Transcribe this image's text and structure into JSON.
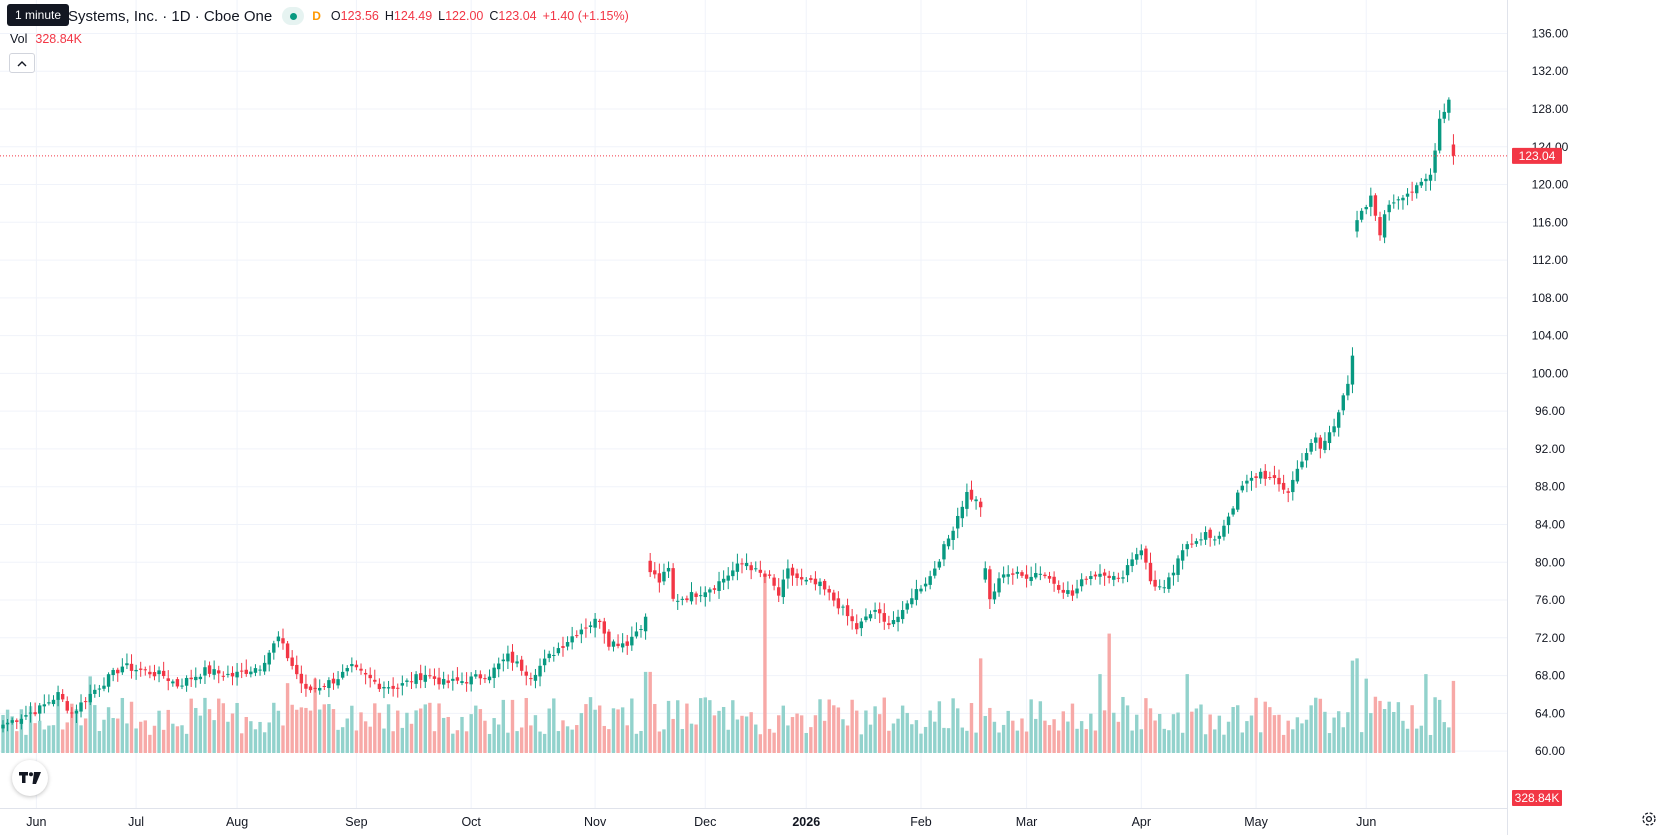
{
  "header": {
    "symbol_title": "Systems, Inc. · 1D · Cboe One",
    "interval_badge": "D",
    "tooltip": "1 minute",
    "ohlc": [
      {
        "key": "O",
        "value": "123.56"
      },
      {
        "key": "H",
        "value": "124.49"
      },
      {
        "key": "L",
        "value": "122.00"
      },
      {
        "key": "C",
        "value": "123.04"
      },
      {
        "key": "",
        "value": "+1.40 (+1.15%)"
      }
    ],
    "vol_label": "Vol",
    "vol_value": "328.84K"
  },
  "price_label": "123.04",
  "volume_label": "328.84K",
  "colors": {
    "up": "#089981",
    "down": "#f23645",
    "vol_up": "#92d2cc",
    "vol_down": "#f7a9a7",
    "grid": "#f0f3fa",
    "axis_text": "#131722"
  },
  "icons": [
    "chevron-up-icon",
    "tradingview-logo-icon",
    "settings-icon",
    "status-dot-icon"
  ],
  "chart_data": {
    "type": "candlestick",
    "ylim": [
      58,
      137
    ],
    "y_ticks": [
      "136.00",
      "132.00",
      "128.00",
      "124.00",
      "120.00",
      "116.00",
      "112.00",
      "108.00",
      "104.00",
      "100.00",
      "96.00",
      "92.00",
      "88.00",
      "84.00",
      "80.00",
      "76.00",
      "72.00",
      "68.00",
      "64.00",
      "60.00"
    ],
    "x_ticks": [
      {
        "label": "Jun",
        "bold": false,
        "index": 4
      },
      {
        "label": "Jul",
        "bold": false,
        "index": 29
      },
      {
        "label": "Aug",
        "bold": false,
        "index": 51
      },
      {
        "label": "Sep",
        "bold": false,
        "index": 77
      },
      {
        "label": "Oct",
        "bold": false,
        "index": 102
      },
      {
        "label": "Nov",
        "bold": false,
        "index": 129
      },
      {
        "label": "Dec",
        "bold": false,
        "index": 153
      },
      {
        "label": "2026",
        "bold": true,
        "index": 175
      },
      {
        "label": "Feb",
        "bold": false,
        "index": 200
      },
      {
        "label": "Mar",
        "bold": false,
        "index": 223
      },
      {
        "label": "Apr",
        "bold": false,
        "index": 248
      },
      {
        "label": "May",
        "bold": false,
        "index": 273
      },
      {
        "label": "Jun",
        "bold": false,
        "index": 297
      }
    ],
    "last_price": 123.04,
    "anchors": [
      [
        0,
        62.8
      ],
      [
        8,
        64.5
      ],
      [
        12,
        66
      ],
      [
        15,
        64
      ],
      [
        20,
        66.5
      ],
      [
        26,
        69
      ],
      [
        35,
        68
      ],
      [
        38,
        67
      ],
      [
        44,
        68.5
      ],
      [
        50,
        68
      ],
      [
        56,
        69
      ],
      [
        60,
        72
      ],
      [
        62,
        70
      ],
      [
        66,
        66.3
      ],
      [
        72,
        67.5
      ],
      [
        76,
        68.8
      ],
      [
        82,
        67
      ],
      [
        86,
        66.8
      ],
      [
        92,
        68.2
      ],
      [
        96,
        67.2
      ],
      [
        101,
        67.5
      ],
      [
        106,
        68.2
      ],
      [
        110,
        70
      ],
      [
        115,
        68
      ],
      [
        120,
        70.5
      ],
      [
        126,
        73
      ],
      [
        130,
        74
      ],
      [
        132,
        71.5
      ],
      [
        136,
        71.5
      ],
      [
        140,
        74
      ],
      [
        141,
        79
      ],
      [
        143,
        78
      ],
      [
        145,
        79.2
      ],
      [
        146,
        76
      ],
      [
        150,
        76.5
      ],
      [
        155,
        77.5
      ],
      [
        160,
        79.5
      ],
      [
        162,
        80
      ],
      [
        164,
        79
      ],
      [
        167,
        78.2
      ],
      [
        169,
        76.5
      ],
      [
        171,
        79
      ],
      [
        174,
        78
      ],
      [
        178,
        77.5
      ],
      [
        182,
        75.5
      ],
      [
        186,
        73
      ],
      [
        190,
        75
      ],
      [
        192,
        73.5
      ],
      [
        196,
        74.5
      ],
      [
        198,
        76.5
      ],
      [
        202,
        78.5
      ],
      [
        204,
        80.5
      ],
      [
        206,
        82.5
      ],
      [
        208,
        85
      ],
      [
        210,
        87.3
      ],
      [
        213,
        86
      ],
      [
        214,
        79
      ],
      [
        215,
        76
      ],
      [
        218,
        79
      ],
      [
        222,
        78.5
      ],
      [
        226,
        79
      ],
      [
        230,
        77.5
      ],
      [
        233,
        76.5
      ],
      [
        236,
        78.5
      ],
      [
        240,
        79
      ],
      [
        243,
        78
      ],
      [
        246,
        80.5
      ],
      [
        248,
        81.5
      ],
      [
        250,
        78
      ],
      [
        253,
        77
      ],
      [
        256,
        80
      ],
      [
        258,
        82
      ],
      [
        262,
        83
      ],
      [
        264,
        82
      ],
      [
        267,
        85
      ],
      [
        270,
        88
      ],
      [
        274,
        89.5
      ],
      [
        277,
        88.5
      ],
      [
        280,
        87.5
      ],
      [
        283,
        91
      ],
      [
        286,
        93
      ],
      [
        287,
        92
      ],
      [
        290,
        94.5
      ],
      [
        292,
        98
      ],
      [
        293,
        99
      ],
      [
        294,
        101.5
      ],
      [
        295,
        116
      ],
      [
        298,
        118.5
      ],
      [
        300,
        115
      ],
      [
        302,
        118
      ],
      [
        305,
        119
      ],
      [
        308,
        119.5
      ],
      [
        311,
        121
      ],
      [
        313,
        127
      ],
      [
        315,
        129
      ],
      [
        316,
        123.04
      ]
    ],
    "volume_ylim": [
      0,
      800
    ],
    "volume_last": "328.84K",
    "volume_spikes": [
      [
        19,
        340
      ],
      [
        62,
        310
      ],
      [
        68,
        330
      ],
      [
        140,
        360
      ],
      [
        141,
        360
      ],
      [
        166,
        790
      ],
      [
        213,
        420
      ],
      [
        241,
        530
      ],
      [
        239,
        350
      ],
      [
        258,
        350
      ],
      [
        294,
        410
      ],
      [
        295,
        420
      ],
      [
        297,
        330
      ],
      [
        310,
        350
      ],
      [
        316,
        320
      ]
    ]
  }
}
